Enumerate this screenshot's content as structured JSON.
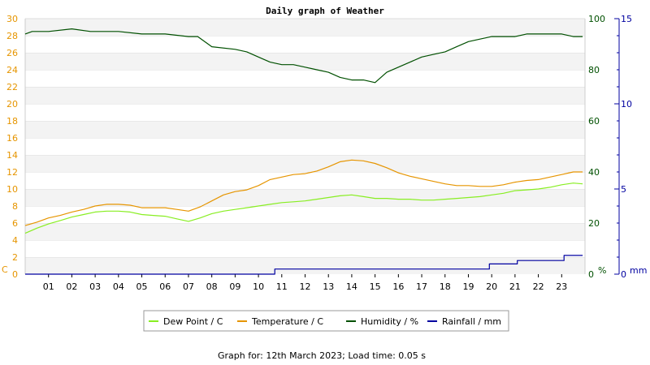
{
  "chart_data": {
    "type": "line",
    "title": "Daily graph of Weather",
    "footer": "Graph for: 12th March 2023; Load time: 0.05 s",
    "x_ticks": [
      "01",
      "02",
      "03",
      "04",
      "05",
      "06",
      "07",
      "08",
      "09",
      "10",
      "11",
      "12",
      "13",
      "14",
      "15",
      "16",
      "17",
      "18",
      "19",
      "20",
      "21",
      "22",
      "23"
    ],
    "xlim": [
      0,
      24
    ],
    "axes": {
      "left": {
        "unit": "C",
        "ylim": [
          0,
          30
        ],
        "ticks": [
          0,
          2,
          4,
          6,
          8,
          10,
          12,
          14,
          16,
          18,
          20,
          22,
          24,
          26,
          28,
          30
        ],
        "color": "#e69500"
      },
      "humidity": {
        "unit": "%",
        "ylim": [
          0,
          100
        ],
        "ticks": [
          0,
          20,
          40,
          60,
          80,
          100
        ],
        "color": "#005000"
      },
      "rainfall": {
        "unit": "mm",
        "ylim": [
          0,
          15
        ],
        "ticks": [
          0,
          5,
          10,
          15
        ],
        "color": "#0000a0"
      }
    },
    "grid": "horizontal-bands",
    "legend_position": "bottom",
    "series": [
      {
        "name": "Dew Point / C",
        "axis": "left",
        "color": "#88ee22",
        "x": [
          0,
          0.5,
          1,
          1.5,
          2,
          2.5,
          3,
          3.5,
          4,
          4.5,
          5,
          5.5,
          6,
          6.5,
          7,
          7.5,
          8,
          8.5,
          9,
          9.5,
          10,
          10.5,
          11,
          11.5,
          12,
          12.5,
          13,
          13.5,
          14,
          14.5,
          15,
          15.5,
          16,
          16.5,
          17,
          17.5,
          18,
          18.5,
          19,
          19.5,
          20,
          20.5,
          21,
          21.5,
          22,
          22.5,
          23,
          23.5,
          23.9
        ],
        "y": [
          4.8,
          5.4,
          5.9,
          6.3,
          6.7,
          7.0,
          7.3,
          7.4,
          7.4,
          7.3,
          7.0,
          6.9,
          6.8,
          6.5,
          6.2,
          6.6,
          7.1,
          7.4,
          7.6,
          7.8,
          8.0,
          8.2,
          8.4,
          8.5,
          8.6,
          8.8,
          9.0,
          9.2,
          9.3,
          9.1,
          8.9,
          8.9,
          8.8,
          8.8,
          8.7,
          8.7,
          8.8,
          8.9,
          9.0,
          9.1,
          9.3,
          9.5,
          9.8,
          9.9,
          10.0,
          10.2,
          10.5,
          10.7,
          10.6
        ]
      },
      {
        "name": "Temperature / C",
        "axis": "left",
        "color": "#e69500",
        "x": [
          0,
          0.5,
          1,
          1.5,
          2,
          2.5,
          3,
          3.5,
          4,
          4.5,
          5,
          5.5,
          6,
          6.5,
          7,
          7.5,
          8,
          8.5,
          9,
          9.5,
          10,
          10.5,
          11,
          11.5,
          12,
          12.5,
          13,
          13.5,
          14,
          14.5,
          15,
          15.5,
          16,
          16.5,
          17,
          17.5,
          18,
          18.5,
          19,
          19.5,
          20,
          20.5,
          21,
          21.5,
          22,
          22.5,
          23,
          23.5,
          23.9
        ],
        "y": [
          5.7,
          6.1,
          6.6,
          6.9,
          7.3,
          7.6,
          8.0,
          8.2,
          8.2,
          8.1,
          7.8,
          7.8,
          7.8,
          7.6,
          7.4,
          7.9,
          8.6,
          9.3,
          9.7,
          9.9,
          10.4,
          11.1,
          11.4,
          11.7,
          11.8,
          12.1,
          12.6,
          13.2,
          13.4,
          13.3,
          13.0,
          12.5,
          11.9,
          11.5,
          11.2,
          10.9,
          10.6,
          10.4,
          10.4,
          10.3,
          10.3,
          10.5,
          10.8,
          11.0,
          11.1,
          11.4,
          11.7,
          12.0,
          12.0
        ]
      },
      {
        "name": "Humidity / %",
        "axis": "humidity",
        "color": "#005000",
        "x": [
          0,
          0.3,
          1,
          2,
          2.8,
          3,
          4,
          5,
          5.5,
          6,
          7,
          7.4,
          8,
          9,
          9.5,
          10,
          10.5,
          11,
          11.5,
          12,
          12.5,
          13,
          13.5,
          14,
          14.5,
          15,
          15.5,
          16,
          16.5,
          17,
          17.5,
          18,
          18.5,
          19,
          19.5,
          20,
          20.5,
          21,
          21.5,
          22,
          22.5,
          23,
          23.5,
          23.9
        ],
        "y": [
          94,
          95,
          95,
          96,
          95,
          95,
          95,
          94,
          94,
          94,
          93,
          93,
          89,
          88,
          87,
          85,
          83,
          82,
          82,
          81,
          80,
          79,
          77,
          76,
          76,
          75,
          79,
          81,
          83,
          85,
          86,
          87,
          89,
          91,
          92,
          93,
          93,
          93,
          94,
          94,
          94,
          94,
          93,
          93
        ]
      },
      {
        "name": "Rainfall / mm",
        "axis": "rainfall",
        "color": "#0000a0",
        "x": [
          0,
          10.7,
          10.7,
          19.9,
          19.9,
          21.1,
          21.1,
          23.1,
          23.1,
          23.9
        ],
        "y": [
          0,
          0,
          0.3,
          0.3,
          0.6,
          0.6,
          0.8,
          0.8,
          1.1,
          1.1
        ]
      }
    ]
  }
}
